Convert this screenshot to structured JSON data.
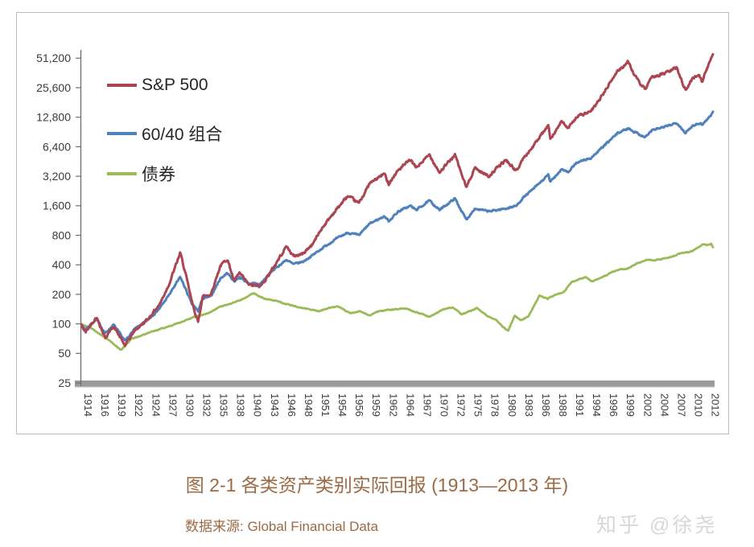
{
  "chart_data": {
    "type": "line",
    "title": "图 2-1 各类资产类别实际回报 (1913—2013 年)",
    "source_note": "数据来源:  Global Financial Data",
    "watermark": "知乎 @徐尧",
    "legend_position": "top-left-inside",
    "grid": "off",
    "y_axis": {
      "scale": "log2",
      "range": [
        25,
        51200
      ],
      "tick_values": [
        25,
        50,
        100,
        200,
        400,
        800,
        1600,
        3200,
        6400,
        12800,
        25600,
        51200
      ],
      "tick_labels": [
        "25",
        "50",
        "100",
        "200",
        "400",
        "800",
        "1,600",
        "3,200",
        "6,400",
        "12,800",
        "25,600",
        "51,200"
      ]
    },
    "x_axis": {
      "range": [
        1914,
        2013.5
      ],
      "tick_labels": [
        "1914",
        "1916",
        "1919",
        "1922",
        "1924",
        "1927",
        "1930",
        "1932",
        "1935",
        "1938",
        "1940",
        "1943",
        "1946",
        "1948",
        "1951",
        "1954",
        "1956",
        "1959",
        "1962",
        "1964",
        "1967",
        "1970",
        "1972",
        "1975",
        "1978",
        "1980",
        "1983",
        "1986",
        "1988",
        "1991",
        "1994",
        "1996",
        "1999",
        "2002",
        "2004",
        "2007",
        "2010",
        "2012"
      ]
    },
    "series": [
      {
        "name": "S&P 500",
        "color": "#ab4551",
        "points": [
          [
            1914,
            100
          ],
          [
            1914.8,
            82
          ],
          [
            1916.5,
            118
          ],
          [
            1917.9,
            72
          ],
          [
            1919.2,
            95
          ],
          [
            1921,
            60
          ],
          [
            1922.5,
            85
          ],
          [
            1924.5,
            110
          ],
          [
            1926.5,
            160
          ],
          [
            1928,
            260
          ],
          [
            1929.7,
            530
          ],
          [
            1930.5,
            330
          ],
          [
            1931.5,
            170
          ],
          [
            1932.5,
            103
          ],
          [
            1933.2,
            190
          ],
          [
            1934.5,
            200
          ],
          [
            1936,
            390
          ],
          [
            1937.1,
            460
          ],
          [
            1938.2,
            270
          ],
          [
            1939,
            330
          ],
          [
            1940.5,
            250
          ],
          [
            1942.3,
            240
          ],
          [
            1944,
            345
          ],
          [
            1946.4,
            620
          ],
          [
            1947.5,
            490
          ],
          [
            1949,
            520
          ],
          [
            1950.5,
            650
          ],
          [
            1952,
            950
          ],
          [
            1954,
            1400
          ],
          [
            1956,
            2000
          ],
          [
            1957.8,
            1700
          ],
          [
            1959.5,
            2700
          ],
          [
            1961.8,
            3400
          ],
          [
            1962.5,
            2700
          ],
          [
            1964,
            3700
          ],
          [
            1965.9,
            4700
          ],
          [
            1966.8,
            3900
          ],
          [
            1968.9,
            5300
          ],
          [
            1970.5,
            3500
          ],
          [
            1972.9,
            5300
          ],
          [
            1974.7,
            2450
          ],
          [
            1976,
            3900
          ],
          [
            1978.2,
            3200
          ],
          [
            1980.9,
            4700
          ],
          [
            1982.6,
            3600
          ],
          [
            1983.5,
            4700
          ],
          [
            1985,
            6200
          ],
          [
            1987.6,
            10500
          ],
          [
            1987.9,
            7800
          ],
          [
            1989.7,
            11500
          ],
          [
            1990.8,
            9800
          ],
          [
            1992,
            13000
          ],
          [
            1994.3,
            14500
          ],
          [
            1996,
            21000
          ],
          [
            1998.5,
            38000
          ],
          [
            2000.2,
            47000
          ],
          [
            2001,
            36000
          ],
          [
            2001.7,
            30000
          ],
          [
            2002.8,
            24500
          ],
          [
            2004,
            33000
          ],
          [
            2006,
            36000
          ],
          [
            2007.8,
            41000
          ],
          [
            2009.2,
            24000
          ],
          [
            2010.3,
            32000
          ],
          [
            2011.3,
            35000
          ],
          [
            2011.8,
            30000
          ],
          [
            2013,
            47000
          ],
          [
            2013.5,
            57000
          ]
        ]
      },
      {
        "name": "60/40 组合",
        "color": "#4f81bd",
        "points": [
          [
            1914,
            100
          ],
          [
            1914.8,
            88
          ],
          [
            1916.5,
            112
          ],
          [
            1917.9,
            80
          ],
          [
            1919.2,
            98
          ],
          [
            1921,
            67
          ],
          [
            1922.5,
            88
          ],
          [
            1924.5,
            108
          ],
          [
            1926.5,
            145
          ],
          [
            1928,
            200
          ],
          [
            1929.7,
            300
          ],
          [
            1930.5,
            230
          ],
          [
            1931.5,
            160
          ],
          [
            1932.5,
            135
          ],
          [
            1933.2,
            180
          ],
          [
            1934.5,
            190
          ],
          [
            1936,
            290
          ],
          [
            1937.1,
            330
          ],
          [
            1938.2,
            272
          ],
          [
            1939,
            300
          ],
          [
            1940.5,
            258
          ],
          [
            1942.3,
            255
          ],
          [
            1944,
            340
          ],
          [
            1946.4,
            450
          ],
          [
            1947.5,
            405
          ],
          [
            1949,
            430
          ],
          [
            1950.5,
            500
          ],
          [
            1952,
            590
          ],
          [
            1954,
            720
          ],
          [
            1956,
            850
          ],
          [
            1957.8,
            800
          ],
          [
            1959.5,
            1050
          ],
          [
            1961.8,
            1250
          ],
          [
            1962.5,
            1120
          ],
          [
            1964,
            1400
          ],
          [
            1965.9,
            1600
          ],
          [
            1966.8,
            1450
          ],
          [
            1968.9,
            1800
          ],
          [
            1970.5,
            1450
          ],
          [
            1972.9,
            1900
          ],
          [
            1974.7,
            1150
          ],
          [
            1976,
            1500
          ],
          [
            1978.2,
            1400
          ],
          [
            1980.9,
            1500
          ],
          [
            1982.6,
            1600
          ],
          [
            1983.5,
            1900
          ],
          [
            1985,
            2300
          ],
          [
            1987.6,
            3300
          ],
          [
            1987.9,
            2800
          ],
          [
            1989.7,
            3800
          ],
          [
            1990.8,
            3500
          ],
          [
            1992,
            4400
          ],
          [
            1994.3,
            4900
          ],
          [
            1996,
            6200
          ],
          [
            1998.5,
            8800
          ],
          [
            2000.2,
            9900
          ],
          [
            2001,
            9200
          ],
          [
            2002.8,
            8000
          ],
          [
            2004,
            9500
          ],
          [
            2006,
            10200
          ],
          [
            2007.8,
            11300
          ],
          [
            2009.2,
            8800
          ],
          [
            2010.3,
            10500
          ],
          [
            2011.3,
            11200
          ],
          [
            2011.8,
            10800
          ],
          [
            2013,
            13000
          ],
          [
            2013.5,
            14500
          ]
        ]
      },
      {
        "name": "债券",
        "color": "#9bbb59",
        "points": [
          [
            1914,
            100
          ],
          [
            1915.5,
            92
          ],
          [
            1917.5,
            75
          ],
          [
            1918.5,
            68
          ],
          [
            1920.4,
            54
          ],
          [
            1922,
            70
          ],
          [
            1925,
            82
          ],
          [
            1928,
            95
          ],
          [
            1930,
            105
          ],
          [
            1932,
            118
          ],
          [
            1934,
            128
          ],
          [
            1936,
            150
          ],
          [
            1938,
            163
          ],
          [
            1940,
            185
          ],
          [
            1941.2,
            205
          ],
          [
            1943,
            180
          ],
          [
            1945,
            170
          ],
          [
            1946.5,
            158
          ],
          [
            1948,
            150
          ],
          [
            1951.5,
            135
          ],
          [
            1953,
            145
          ],
          [
            1954.5,
            150
          ],
          [
            1956.5,
            128
          ],
          [
            1958,
            135
          ],
          [
            1959.5,
            122
          ],
          [
            1961,
            135
          ],
          [
            1963,
            140
          ],
          [
            1965,
            145
          ],
          [
            1967,
            130
          ],
          [
            1969,
            118
          ],
          [
            1971,
            140
          ],
          [
            1972.5,
            147
          ],
          [
            1974,
            125
          ],
          [
            1976.4,
            145
          ],
          [
            1978,
            120
          ],
          [
            1979.4,
            110
          ],
          [
            1980.3,
            95
          ],
          [
            1981.3,
            85
          ],
          [
            1982.3,
            122
          ],
          [
            1983.3,
            108
          ],
          [
            1984.5,
            120
          ],
          [
            1986.2,
            195
          ],
          [
            1987.5,
            180
          ],
          [
            1988.5,
            195
          ],
          [
            1990,
            210
          ],
          [
            1991.3,
            268
          ],
          [
            1993.5,
            300
          ],
          [
            1994.5,
            270
          ],
          [
            1996.5,
            310
          ],
          [
            1998.5,
            355
          ],
          [
            2000,
            365
          ],
          [
            2001.5,
            410
          ],
          [
            2003,
            450
          ],
          [
            2004.3,
            445
          ],
          [
            2005.5,
            460
          ],
          [
            2007,
            480
          ],
          [
            2008.5,
            530
          ],
          [
            2009.5,
            540
          ],
          [
            2010.3,
            555
          ],
          [
            2011,
            590
          ],
          [
            2011.9,
            650
          ],
          [
            2012.5,
            640
          ],
          [
            2013.2,
            655
          ],
          [
            2013.5,
            600
          ]
        ]
      }
    ]
  }
}
